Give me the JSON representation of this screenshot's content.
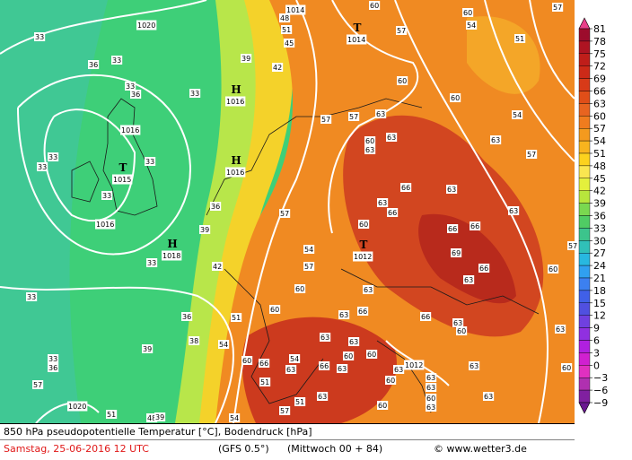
{
  "map": {
    "pressure_centers": [
      {
        "letter": "T",
        "value": "1014"
      },
      {
        "letter": "H",
        "value": "1016"
      },
      {
        "letter": "H",
        "value": "1016"
      },
      {
        "letter": "T",
        "value": "1015"
      },
      {
        "letter": "H",
        "value": "1018"
      },
      {
        "letter": "T",
        "value": "1012"
      }
    ],
    "isobar_labels": [
      "1020",
      "1016",
      "1016",
      "1014",
      "1012",
      "1020"
    ],
    "temperature_labels": [
      33,
      33,
      36,
      33,
      36,
      33,
      33,
      33,
      33,
      33,
      33,
      33,
      36,
      39,
      33,
      36,
      38,
      42,
      39,
      36,
      39,
      42,
      48,
      51,
      45,
      57,
      57,
      63,
      60,
      60,
      57,
      60,
      54,
      51,
      57,
      63,
      54,
      57,
      60,
      60,
      63,
      63,
      66,
      63,
      66,
      63,
      63,
      57,
      60,
      66,
      66,
      69,
      63,
      66,
      57,
      60,
      54,
      57,
      63,
      60,
      63,
      66,
      60,
      66,
      63,
      60,
      51,
      54,
      60,
      66,
      63,
      66,
      63,
      60,
      60,
      63,
      63,
      60,
      63,
      60,
      63,
      63,
      63,
      63,
      60,
      63,
      51,
      54,
      51,
      57,
      54,
      48,
      51,
      39,
      57,
      60,
      63,
      63
    ]
  },
  "colorbar": {
    "labels": [
      "81",
      "78",
      "75",
      "72",
      "69",
      "66",
      "63",
      "60",
      "57",
      "54",
      "51",
      "48",
      "45",
      "42",
      "39",
      "36",
      "33",
      "30",
      "27",
      "24",
      "21",
      "18",
      "15",
      "12",
      "9",
      "6",
      "3",
      "0",
      "−3",
      "−6",
      "−9"
    ],
    "colors": [
      "#e8408a",
      "#9c0c2c",
      "#ae1422",
      "#bf1e1a",
      "#cc2a18",
      "#d83a18",
      "#e04e18",
      "#e86420",
      "#f07c1e",
      "#f49a1e",
      "#f8b41e",
      "#fcd21e",
      "#fae650",
      "#e4f03c",
      "#b8e63c",
      "#7ad850",
      "#50cc64",
      "#3cc48c",
      "#30c0b8",
      "#28b8e0",
      "#30a0f0",
      "#3c80f0",
      "#4060e8",
      "#5050e0",
      "#7040e0",
      "#9030e0",
      "#b020e0",
      "#d020d0",
      "#e030c0",
      "#b030b0",
      "#8020a0",
      "#6a1890"
    ]
  },
  "footer": {
    "title": "850 hPa pseudopotentielle Temperatur [°C], Bodendruck [hPa]",
    "date": "Samstag, 25-06-2016  12 UTC",
    "model": "(GFS 0.5°)",
    "run": "(Mittwoch 00 + 84)",
    "copyright": "© www.wetter3.de"
  }
}
